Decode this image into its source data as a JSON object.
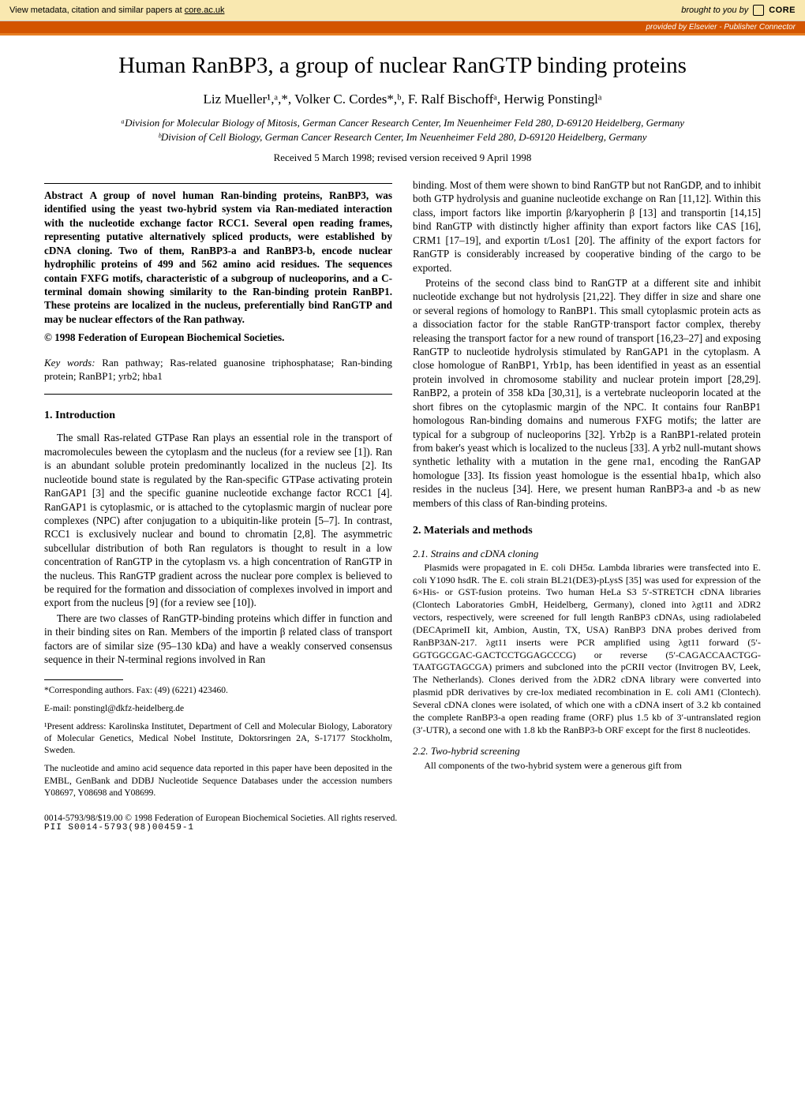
{
  "banner": {
    "left_prefix": "View metadata, citation and similar papers at ",
    "left_link": "core.ac.uk",
    "brought": "brought to you by ",
    "core_label": "CORE",
    "provided": "provided by Elsevier - Publisher Connector"
  },
  "title": "Human RanBP3, a group of nuclear RanGTP binding proteins",
  "authors": "Liz Mueller¹,ᵃ,*, Volker C. Cordes*,ᵇ, F. Ralf Bischoffᵃ, Herwig Ponstinglᵃ",
  "affiliations": {
    "a": "ᵃDivision for Molecular Biology of Mitosis, German Cancer Research Center, Im Neuenheimer Feld 280, D-69120 Heidelberg, Germany",
    "b": "ᵇDivision of Cell Biology, German Cancer Research Center, Im Neuenheimer Feld 280, D-69120 Heidelberg, Germany"
  },
  "received": "Received 5 March 1998; revised version received 9 April 1998",
  "abstract": {
    "label": "Abstract",
    "text": "A group of novel human Ran-binding proteins, RanBP3, was identified using the yeast two-hybrid system via Ran-mediated interaction with the nucleotide exchange factor RCC1. Several open reading frames, representing putative alternatively spliced products, were established by cDNA cloning. Two of them, RanBP3-a and RanBP3-b, encode nuclear hydrophilic proteins of 499 and 562 amino acid residues. The sequences contain FXFG motifs, characteristic of a subgroup of nucleoporins, and a C-terminal domain showing similarity to the Ran-binding protein RanBP1. These proteins are localized in the nucleus, preferentially bind RanGTP and may be nuclear effectors of the Ran pathway.",
    "copyright": "© 1998 Federation of European Biochemical Societies."
  },
  "keywords": {
    "label": "Key words:",
    "text": " Ran pathway; Ras-related guanosine triphosphatase; Ran-binding protein; RanBP1; yrb2; hba1"
  },
  "sections": {
    "intro_heading": "1. Introduction",
    "intro_p1": "The small Ras-related GTPase Ran plays an essential role in the transport of macromolecules beween the cytoplasm and the nucleus (for a review see [1]). Ran is an abundant soluble protein predominantly localized in the nucleus [2]. Its nucleotide bound state is regulated by the Ran-specific GTPase activating protein RanGAP1 [3] and the specific guanine nucleotide exchange factor RCC1 [4]. RanGAP1 is cytoplasmic, or is attached to the cytoplasmic margin of nuclear pore complexes (NPC) after conjugation to a ubiquitin-like protein [5–7]. In contrast, RCC1 is exclusively nuclear and bound to chromatin [2,8]. The asymmetric subcellular distribution of both Ran regulators is thought to result in a low concentration of RanGTP in the cytoplasm vs. a high concentration of RanGTP in the nucleus. This RanGTP gradient across the nuclear pore complex is believed to be required for the formation and dissociation of complexes involved in import and export from the nucleus [9] (for a review see [10]).",
    "intro_p2": "There are two classes of RanGTP-binding proteins which differ in function and in their binding sites on Ran. Members of the importin β related class of transport factors are of similar size (95–130 kDa) and have a weakly conserved consensus sequence in their N-terminal regions involved in Ran",
    "col2_p1": "binding. Most of them were shown to bind RanGTP but not RanGDP, and to inhibit both GTP hydrolysis and guanine nucleotide exchange on Ran [11,12]. Within this class, import factors like importin β/karyopherin β [13] and transportin [14,15] bind RanGTP with distinctly higher affinity than export factors like CAS [16], CRM1 [17–19], and exportin t/Los1 [20]. The affinity of the export factors for RanGTP is considerably increased by cooperative binding of the cargo to be exported.",
    "col2_p2": "Proteins of the second class bind to RanGTP at a different site and inhibit nucleotide exchange but not hydrolysis [21,22]. They differ in size and share one or several regions of homology to RanBP1. This small cytoplasmic protein acts as a dissociation factor for the stable RanGTP·transport factor complex, thereby releasing the transport factor for a new round of transport [16,23–27] and exposing RanGTP to nucleotide hydrolysis stimulated by RanGAP1 in the cytoplasm. A close homologue of RanBP1, Yrb1p, has been identified in yeast as an essential protein involved in chromosome stability and nuclear protein import [28,29]. RanBP2, a protein of 358 kDa [30,31], is a vertebrate nucleoporin located at the short fibres on the cytoplasmic margin of the NPC. It contains four RanBP1 homologous Ran-binding domains and numerous FXFG motifs; the latter are typical for a subgroup of nucleoporins [32]. Yrb2p is a RanBP1-related protein from baker's yeast which is localized to the nucleus [33]. A yrb2 null-mutant shows synthetic lethality with a mutation in the gene rna1, encoding the RanGAP homologue [33]. Its fission yeast homologue is the essential hba1p, which also resides in the nucleus [34]. Here, we present human RanBP3-a and -b as new members of this class of Ran-binding proteins.",
    "methods_heading": "2. Materials and methods",
    "sub21_heading": "2.1. Strains and cDNA cloning",
    "sub21_text": "Plasmids were propagated in E. coli DH5α. Lambda libraries were transfected into E. coli Y1090 hsdR. The E. coli strain BL21(DE3)-pLysS [35] was used for expression of the 6×His- or GST-fusion proteins. Two human HeLa S3 5′-STRETCH cDNA libraries (Clontech Laboratories GmbH, Heidelberg, Germany), cloned into λgt11 and λDR2 vectors, respectively, were screened for full length RanBP3 cDNAs, using radiolabeled (DECAprimeII kit, Ambion, Austin, TX, USA) RanBP3 DNA probes derived from RanBP3ΔN-217. λgt11 inserts were PCR amplified using λgt11 forward (5′-GGTGGCGAC-GACTCCTGGAGCCCG) or reverse (5′-CAGACCAACTGG-TAATGGTAGCGA) primers and subcloned into the pCRII vector (Invitrogen BV, Leek, The Netherlands). Clones derived from the λDR2 cDNA library were converted into plasmid pDR derivatives by cre-lox mediated recombination in E. coli AM1 (Clontech). Several cDNA clones were isolated, of which one with a cDNA insert of 3.2 kb contained the complete RanBP3-a open reading frame (ORF) plus 1.5 kb of 3′-untranslated region (3′-UTR), a second one with 1.8 kb the RanBP3-b ORF except for the first 8 nucleotides.",
    "sub22_heading": "2.2. Two-hybrid screening",
    "sub22_text": "All components of the two-hybrid system were a generous gift from"
  },
  "footnotes": {
    "corr": "*Corresponding authors. Fax: (49) (6221) 423460.",
    "email": "E-mail: ponstingl@dkfz-heidelberg.de",
    "present": "¹Present address: Karolinska Institutet, Department of Cell and Molecular Biology, Laboratory of Molecular Genetics, Medical Nobel Institute, Doktorsringen 2A, S-17177 Stockholm, Sweden.",
    "deposit": "The nucleotide and amino acid sequence data reported in this paper have been deposited in the EMBL, GenBank and DDBJ Nucleotide Sequence Databases under the accession numbers Y08697, Y08698 and Y08699."
  },
  "bottom": {
    "copyright": "0014-5793/98/$19.00 © 1998 Federation of European Biochemical Societies. All rights reserved.",
    "pii": "PII S0014-5793(98)00459-1"
  },
  "colors": {
    "banner_bg": "#f9e8b0",
    "provided_bg": "#d35400",
    "orange_bar": "#e67e22"
  }
}
